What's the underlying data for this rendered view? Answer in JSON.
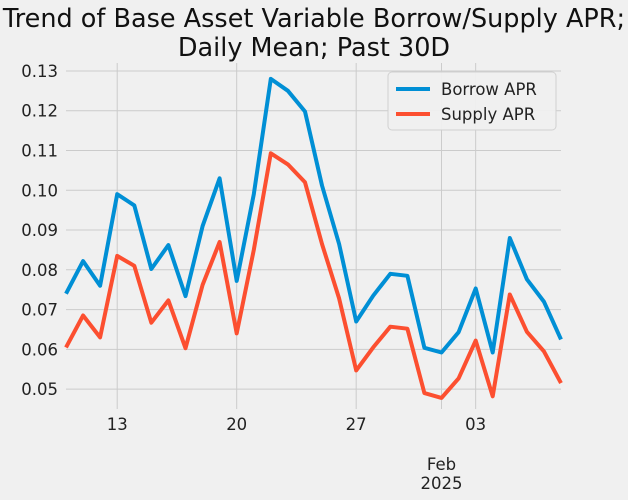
{
  "chart_data": {
    "type": "line",
    "title_lines": [
      "Trend of Base Asset Variable Borrow/Supply APR;",
      "Daily Mean; Past 30D"
    ],
    "xlabel": "",
    "ylabel": "",
    "x": [
      "2025-01-10",
      "2025-01-11",
      "2025-01-12",
      "2025-01-13",
      "2025-01-14",
      "2025-01-15",
      "2025-01-16",
      "2025-01-17",
      "2025-01-18",
      "2025-01-19",
      "2025-01-20",
      "2025-01-21",
      "2025-01-22",
      "2025-01-23",
      "2025-01-24",
      "2025-01-25",
      "2025-01-26",
      "2025-01-27",
      "2025-01-28",
      "2025-01-29",
      "2025-01-30",
      "2025-01-31",
      "2025-02-01",
      "2025-02-02",
      "2025-02-03",
      "2025-02-04",
      "2025-02-05",
      "2025-02-06",
      "2025-02-07",
      "2025-02-08"
    ],
    "series": [
      {
        "name": "Borrow APR",
        "color": "#008fd5",
        "values": [
          0.074,
          0.0822,
          0.076,
          0.099,
          0.0962,
          0.0802,
          0.0862,
          0.0734,
          0.091,
          0.103,
          0.0772,
          0.099,
          0.128,
          0.125,
          0.1198,
          0.1012,
          0.0865,
          0.067,
          0.0735,
          0.079,
          0.0785,
          0.0604,
          0.0592,
          0.0643,
          0.0753,
          0.0592,
          0.088,
          0.0776,
          0.072,
          0.0625
        ]
      },
      {
        "name": "Supply APR",
        "color": "#fc4f30",
        "values": [
          0.0605,
          0.0685,
          0.063,
          0.0835,
          0.081,
          0.0667,
          0.0723,
          0.0603,
          0.0762,
          0.087,
          0.064,
          0.085,
          0.1093,
          0.1065,
          0.102,
          0.0865,
          0.0728,
          0.0547,
          0.0605,
          0.0657,
          0.0652,
          0.049,
          0.0478,
          0.0527,
          0.0622,
          0.0482,
          0.0738,
          0.0644,
          0.0595,
          0.0515
        ]
      }
    ],
    "ylim": [
      0.045,
      0.132
    ],
    "xlim": [
      "2025-01-10",
      "2025-02-08"
    ],
    "yticks": [
      0.05,
      0.06,
      0.07,
      0.08,
      0.09,
      0.1,
      0.11,
      0.12,
      0.13
    ],
    "ytick_labels": [
      "0.05",
      "0.06",
      "0.07",
      "0.08",
      "0.09",
      "0.10",
      "0.11",
      "0.12",
      "0.13"
    ],
    "xticks": [
      "2025-01-13",
      "2025-01-20",
      "2025-01-27",
      "2025-02-03"
    ],
    "xtick_labels": [
      "13",
      "20",
      "27",
      "03"
    ],
    "month_marker": {
      "date": "2025-02-01",
      "label_line1": "Feb",
      "label_line2": "2025"
    },
    "grid": true,
    "legend_position": "top-right"
  }
}
